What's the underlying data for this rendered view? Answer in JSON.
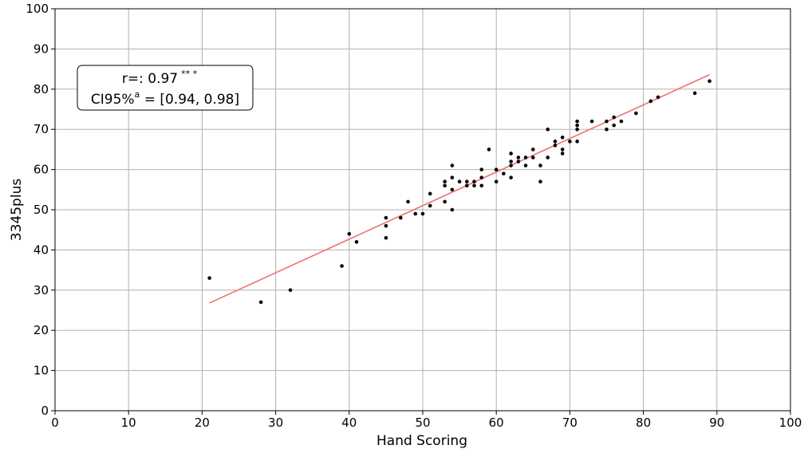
{
  "chart_data": {
    "type": "scatter",
    "title": "",
    "xlabel": "Hand Scoring",
    "ylabel": "3345plus",
    "xlim": [
      0,
      100
    ],
    "ylim": [
      0,
      100
    ],
    "xticks": [
      0,
      10,
      20,
      30,
      40,
      50,
      60,
      70,
      80,
      90,
      100
    ],
    "yticks": [
      0,
      10,
      20,
      30,
      40,
      50,
      60,
      70,
      80,
      90,
      100
    ],
    "grid": true,
    "colors": {
      "points": "#000000",
      "fit_line": "#f07070",
      "grid": "#b0b0b0"
    },
    "points": [
      [
        21,
        33
      ],
      [
        28,
        27
      ],
      [
        32,
        30
      ],
      [
        39,
        36
      ],
      [
        40,
        44
      ],
      [
        41,
        42
      ],
      [
        45,
        48
      ],
      [
        45,
        46
      ],
      [
        45,
        43
      ],
      [
        47,
        48
      ],
      [
        48,
        52
      ],
      [
        49,
        49
      ],
      [
        50,
        49
      ],
      [
        51,
        54
      ],
      [
        51,
        51
      ],
      [
        53,
        57
      ],
      [
        53,
        56
      ],
      [
        53,
        52
      ],
      [
        54,
        61
      ],
      [
        54,
        58
      ],
      [
        54,
        55
      ],
      [
        54,
        50
      ],
      [
        55,
        57
      ],
      [
        56,
        57
      ],
      [
        56,
        56
      ],
      [
        57,
        57
      ],
      [
        57,
        56
      ],
      [
        58,
        60
      ],
      [
        58,
        58
      ],
      [
        58,
        56
      ],
      [
        59,
        65
      ],
      [
        60,
        60
      ],
      [
        60,
        57
      ],
      [
        61,
        59
      ],
      [
        62,
        64
      ],
      [
        62,
        62
      ],
      [
        62,
        61
      ],
      [
        62,
        58
      ],
      [
        63,
        63
      ],
      [
        63,
        62
      ],
      [
        64,
        63
      ],
      [
        64,
        61
      ],
      [
        65,
        65
      ],
      [
        65,
        63
      ],
      [
        66,
        61
      ],
      [
        66,
        57
      ],
      [
        67,
        70
      ],
      [
        67,
        63
      ],
      [
        68,
        67
      ],
      [
        68,
        66
      ],
      [
        69,
        68
      ],
      [
        69,
        65
      ],
      [
        69,
        64
      ],
      [
        70,
        67
      ],
      [
        71,
        72
      ],
      [
        71,
        71
      ],
      [
        71,
        70
      ],
      [
        71,
        67
      ],
      [
        73,
        72
      ],
      [
        75,
        72
      ],
      [
        75,
        70
      ],
      [
        76,
        73
      ],
      [
        76,
        71
      ],
      [
        77,
        72
      ],
      [
        79,
        74
      ],
      [
        81,
        77
      ],
      [
        82,
        78
      ],
      [
        87,
        79
      ],
      [
        89,
        82
      ]
    ],
    "fit_line": {
      "x": [
        21,
        89
      ],
      "y": [
        26.8,
        83.6
      ]
    },
    "annotation": {
      "line1": "r=: 0.97",
      "line1_sup": "** *",
      "line2_pre": "CI95%",
      "line2_sup": "a",
      "line2_post": " = [0.94, 0.98]"
    }
  }
}
